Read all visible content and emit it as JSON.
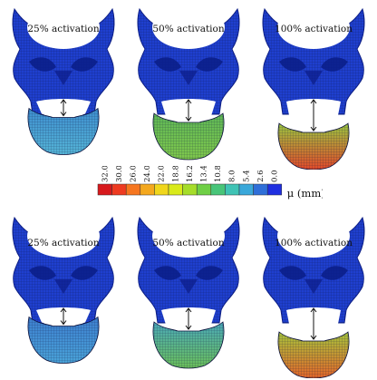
{
  "panels": [
    {
      "label": "25% activation",
      "row": "top",
      "level": 0.25,
      "jaw_color": "#55b4d6",
      "jaw_color_low": "#3f8fd0"
    },
    {
      "label": "50% activation",
      "row": "top",
      "level": 0.5,
      "jaw_color": "#7fc84c",
      "jaw_color_low": "#5fb857"
    },
    {
      "label": "100% activation",
      "row": "top",
      "level": 1.0,
      "jaw_color": "#e2492a",
      "jaw_color_low": "#9bc640"
    },
    {
      "label": "25% activation",
      "row": "bottom",
      "level": 0.25,
      "jaw_color": "#4aa3d8",
      "jaw_color_low": "#3d7fd0"
    },
    {
      "label": "50% activation",
      "row": "bottom",
      "level": 0.5,
      "jaw_color": "#6bbf5a",
      "jaw_color_low": "#4aa8b8"
    },
    {
      "label": "100% activation",
      "row": "bottom",
      "level": 1.0,
      "jaw_color": "#e3662a",
      "jaw_color_low": "#a6c43c"
    }
  ],
  "colorbar": {
    "ticks": [
      "32.0",
      "30.0",
      "26.0",
      "24.0",
      "22.0",
      "18.8",
      "16.2",
      "13.4",
      "10.8",
      "8.0",
      "5.4",
      "2.6",
      "0.0"
    ],
    "colors": [
      "#d7191c",
      "#ee3b21",
      "#f6761f",
      "#f4a81e",
      "#f0d61c",
      "#d9ea1a",
      "#a6dd2a",
      "#6fcf45",
      "#48c579",
      "#3fc3b5",
      "#3aa8da",
      "#2f6fd8",
      "#1f2fe0"
    ],
    "unit": "μ (mm)"
  },
  "colors": {
    "skull": "#1f3fcf",
    "skull_dark": "#0b1d86",
    "mesh": "#0a0f3a"
  }
}
